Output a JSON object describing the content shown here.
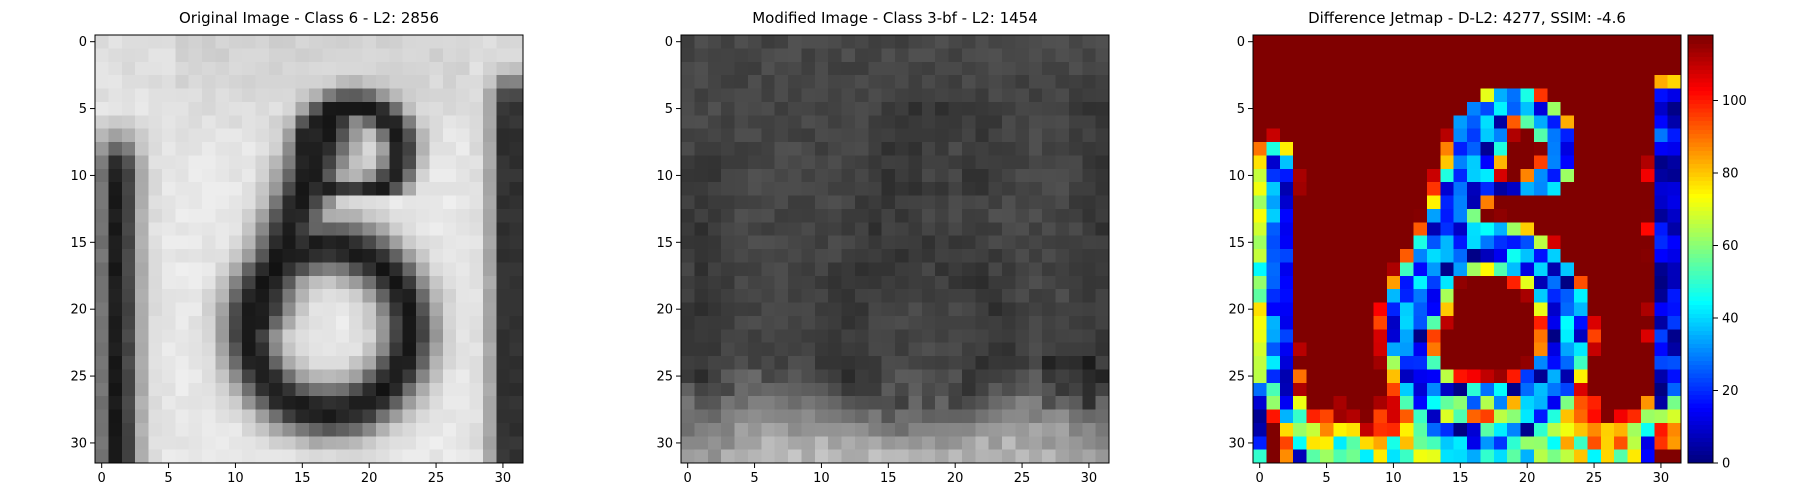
{
  "chart_data": [
    {
      "type": "heatmap",
      "title": "Original Image - Class 6 - L2: 2856",
      "title_color": "#000000",
      "colormap": "gray",
      "grid_size": 32,
      "x_ticks": [
        0,
        5,
        10,
        15,
        20,
        25,
        30
      ],
      "y_ticks": [
        0,
        5,
        10,
        15,
        20,
        25,
        30
      ],
      "xlim": [
        -0.5,
        31.5
      ],
      "ylim": [
        31.5,
        -0.5
      ],
      "content": "grayscale image of a dark digit 6 on a light background, with dark vertical bars at the left and right edges"
    },
    {
      "type": "heatmap",
      "title": "Modified Image - Class 3-bf - L2: 1454",
      "title_color": "#ff0000",
      "colormap": "gray",
      "grid_size": 32,
      "x_ticks": [
        0,
        5,
        10,
        15,
        20,
        25,
        30
      ],
      "y_ticks": [
        0,
        5,
        10,
        15,
        20,
        25,
        30
      ],
      "xlim": [
        -0.5,
        31.5
      ],
      "ylim": [
        31.5,
        -0.5
      ],
      "content": "mostly dark gray noisy image with a faint digit shape and lighter rows near the bottom"
    },
    {
      "type": "heatmap",
      "title": "Difference Jetmap - D-L2: 4277, SSIM: -4.6",
      "title_color": "#000000",
      "colormap": "jet",
      "grid_size": 32,
      "x_ticks": [
        0,
        5,
        10,
        15,
        20,
        25,
        30
      ],
      "y_ticks": [
        0,
        5,
        10,
        15,
        20,
        25,
        30
      ],
      "xlim": [
        -0.5,
        31.5
      ],
      "ylim": [
        31.5,
        -0.5
      ],
      "colorbar": {
        "min": 0,
        "max": 118,
        "ticks": [
          0,
          20,
          40,
          60,
          80,
          100
        ]
      },
      "content": "jet-colored absolute difference between original and modified images"
    }
  ]
}
